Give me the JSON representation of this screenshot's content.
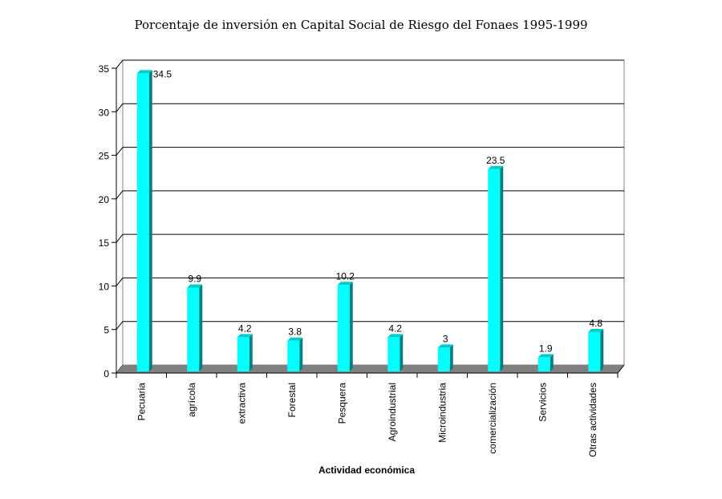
{
  "chart_data": {
    "type": "bar",
    "title": "Porcentaje de inversión en Capital Social de Riesgo del Fonaes 1995-1999",
    "xlabel": "Actividad económica",
    "ylabel": "",
    "ylim": [
      0,
      35
    ],
    "yticks": [
      0,
      5,
      10,
      15,
      20,
      25,
      30,
      35
    ],
    "grid": true,
    "legend": "none",
    "categories": [
      "Pecuaria",
      "agrícola",
      "extractiva",
      "Forestal",
      "Pesquera",
      "Agroindustrial",
      "Microindustria",
      "comercialización",
      "Servicios",
      "Otras actividades"
    ],
    "values": [
      34.5,
      9.9,
      4.2,
      3.8,
      10.2,
      4.2,
      3,
      23.5,
      1.9,
      4.8
    ],
    "data_labels": [
      "34.5",
      "9.9",
      "4.2",
      "3.8",
      "10.2",
      "4.2",
      "3",
      "23.5",
      "1.9",
      "4.8"
    ],
    "colors": {
      "bar_front": "#00ffff",
      "bar_side": "#008080",
      "bar_top": "#00cccc",
      "floor": "#808080",
      "wall": "#808080",
      "grid": "#000000"
    }
  }
}
